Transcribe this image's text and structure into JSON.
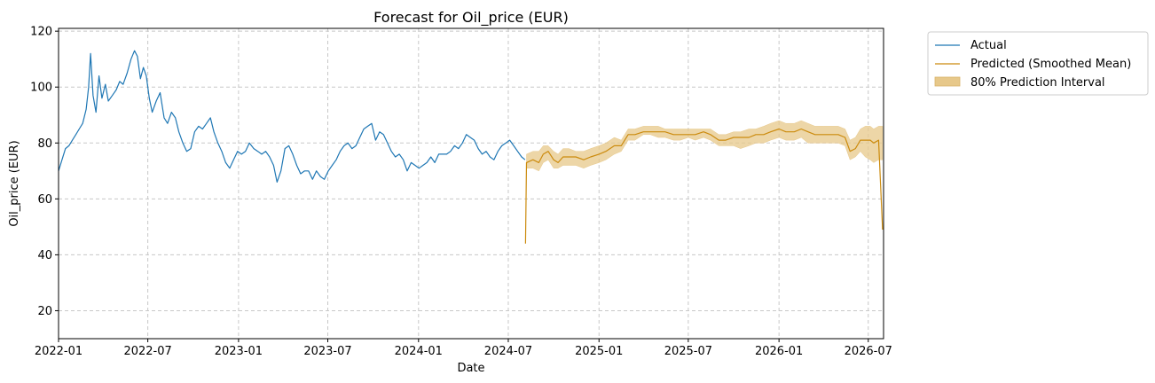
{
  "chart_data": {
    "type": "line",
    "title": "Forecast for Oil_price (EUR)",
    "xlabel": "Date",
    "ylabel": "Oil_price (EUR)",
    "xlim": [
      "2022-01-01",
      "2026-08-01"
    ],
    "ylim": [
      10,
      121
    ],
    "x_ticks": [
      "2022-01",
      "2022-07",
      "2023-01",
      "2023-07",
      "2024-01",
      "2024-07",
      "2025-01",
      "2025-07",
      "2026-01",
      "2026-07"
    ],
    "y_ticks": [
      20,
      40,
      60,
      80,
      100,
      120
    ],
    "grid": true,
    "legend_placement": "outside-top-right",
    "colors": {
      "actual": "#1f77b4",
      "predicted": "#cc8b0e",
      "interval_fill": "#e7c88a"
    },
    "legend": {
      "actual": "Actual",
      "predicted": "Predicted (Smoothed Mean)",
      "interval": "80% Prediction Interval"
    },
    "series": [
      {
        "name": "Actual",
        "points": [
          [
            "2022-01-01",
            70
          ],
          [
            "2022-01-08",
            74
          ],
          [
            "2022-01-15",
            78
          ],
          [
            "2022-01-22",
            79
          ],
          [
            "2022-01-29",
            81
          ],
          [
            "2022-02-05",
            83
          ],
          [
            "2022-02-12",
            85
          ],
          [
            "2022-02-19",
            87
          ],
          [
            "2022-02-26",
            92
          ],
          [
            "2022-03-03",
            100
          ],
          [
            "2022-03-07",
            112
          ],
          [
            "2022-03-12",
            97
          ],
          [
            "2022-03-18",
            91
          ],
          [
            "2022-03-24",
            104
          ],
          [
            "2022-03-30",
            96
          ],
          [
            "2022-04-06",
            101
          ],
          [
            "2022-04-12",
            95
          ],
          [
            "2022-04-20",
            97
          ],
          [
            "2022-04-28",
            99
          ],
          [
            "2022-05-05",
            102
          ],
          [
            "2022-05-12",
            101
          ],
          [
            "2022-05-20",
            105
          ],
          [
            "2022-05-28",
            110
          ],
          [
            "2022-06-04",
            113
          ],
          [
            "2022-06-10",
            111
          ],
          [
            "2022-06-16",
            103
          ],
          [
            "2022-06-22",
            107
          ],
          [
            "2022-06-28",
            104
          ],
          [
            "2022-07-04",
            96
          ],
          [
            "2022-07-10",
            91
          ],
          [
            "2022-07-18",
            95
          ],
          [
            "2022-07-26",
            98
          ],
          [
            "2022-08-03",
            89
          ],
          [
            "2022-08-10",
            87
          ],
          [
            "2022-08-18",
            91
          ],
          [
            "2022-08-26",
            89
          ],
          [
            "2022-09-02",
            84
          ],
          [
            "2022-09-10",
            80
          ],
          [
            "2022-09-18",
            77
          ],
          [
            "2022-09-26",
            78
          ],
          [
            "2022-10-04",
            84
          ],
          [
            "2022-10-12",
            86
          ],
          [
            "2022-10-20",
            85
          ],
          [
            "2022-10-28",
            87
          ],
          [
            "2022-11-05",
            89
          ],
          [
            "2022-11-12",
            84
          ],
          [
            "2022-11-20",
            80
          ],
          [
            "2022-11-28",
            77
          ],
          [
            "2022-12-06",
            73
          ],
          [
            "2022-12-14",
            71
          ],
          [
            "2022-12-22",
            74
          ],
          [
            "2022-12-30",
            77
          ],
          [
            "2023-01-07",
            76
          ],
          [
            "2023-01-15",
            77
          ],
          [
            "2023-01-23",
            80
          ],
          [
            "2023-02-01",
            78
          ],
          [
            "2023-02-09",
            77
          ],
          [
            "2023-02-17",
            76
          ],
          [
            "2023-02-25",
            77
          ],
          [
            "2023-03-05",
            75
          ],
          [
            "2023-03-13",
            72
          ],
          [
            "2023-03-20",
            66
          ],
          [
            "2023-03-28",
            70
          ],
          [
            "2023-04-05",
            78
          ],
          [
            "2023-04-13",
            79
          ],
          [
            "2023-04-21",
            76
          ],
          [
            "2023-04-29",
            72
          ],
          [
            "2023-05-07",
            69
          ],
          [
            "2023-05-15",
            70
          ],
          [
            "2023-05-23",
            70
          ],
          [
            "2023-05-31",
            67
          ],
          [
            "2023-06-08",
            70
          ],
          [
            "2023-06-16",
            68
          ],
          [
            "2023-06-24",
            67
          ],
          [
            "2023-07-02",
            70
          ],
          [
            "2023-07-10",
            72
          ],
          [
            "2023-07-18",
            74
          ],
          [
            "2023-07-26",
            77
          ],
          [
            "2023-08-03",
            79
          ],
          [
            "2023-08-11",
            80
          ],
          [
            "2023-08-19",
            78
          ],
          [
            "2023-08-27",
            79
          ],
          [
            "2023-09-04",
            82
          ],
          [
            "2023-09-12",
            85
          ],
          [
            "2023-09-20",
            86
          ],
          [
            "2023-09-28",
            87
          ],
          [
            "2023-10-06",
            81
          ],
          [
            "2023-10-14",
            84
          ],
          [
            "2023-10-22",
            83
          ],
          [
            "2023-10-30",
            80
          ],
          [
            "2023-11-07",
            77
          ],
          [
            "2023-11-15",
            75
          ],
          [
            "2023-11-23",
            76
          ],
          [
            "2023-12-01",
            74
          ],
          [
            "2023-12-09",
            70
          ],
          [
            "2023-12-17",
            73
          ],
          [
            "2023-12-25",
            72
          ],
          [
            "2024-01-02",
            71
          ],
          [
            "2024-01-10",
            72
          ],
          [
            "2024-01-18",
            73
          ],
          [
            "2024-01-26",
            75
          ],
          [
            "2024-02-03",
            73
          ],
          [
            "2024-02-11",
            76
          ],
          [
            "2024-02-19",
            76
          ],
          [
            "2024-02-27",
            76
          ],
          [
            "2024-03-06",
            77
          ],
          [
            "2024-03-14",
            79
          ],
          [
            "2024-03-22",
            78
          ],
          [
            "2024-03-30",
            80
          ],
          [
            "2024-04-07",
            83
          ],
          [
            "2024-04-15",
            82
          ],
          [
            "2024-04-23",
            81
          ],
          [
            "2024-05-01",
            78
          ],
          [
            "2024-05-09",
            76
          ],
          [
            "2024-05-17",
            77
          ],
          [
            "2024-05-25",
            75
          ],
          [
            "2024-06-02",
            74
          ],
          [
            "2024-06-10",
            77
          ],
          [
            "2024-06-18",
            79
          ],
          [
            "2024-06-26",
            80
          ],
          [
            "2024-07-04",
            81
          ],
          [
            "2024-07-12",
            79
          ],
          [
            "2024-07-20",
            77
          ],
          [
            "2024-07-28",
            75
          ],
          [
            "2024-08-04",
            74
          ]
        ]
      },
      {
        "name": "Predicted (Smoothed Mean)",
        "points": [
          [
            "2024-08-05",
            44
          ],
          [
            "2024-08-07",
            73
          ],
          [
            "2024-08-20",
            74
          ],
          [
            "2024-09-01",
            73
          ],
          [
            "2024-09-10",
            76
          ],
          [
            "2024-09-20",
            77
          ],
          [
            "2024-10-01",
            74
          ],
          [
            "2024-10-10",
            73
          ],
          [
            "2024-10-20",
            75
          ],
          [
            "2024-11-01",
            75
          ],
          [
            "2024-11-15",
            75
          ],
          [
            "2024-12-01",
            74
          ],
          [
            "2024-12-15",
            75
          ],
          [
            "2025-01-01",
            76
          ],
          [
            "2025-01-15",
            77
          ],
          [
            "2025-02-01",
            79
          ],
          [
            "2025-02-15",
            79
          ],
          [
            "2025-03-01",
            83
          ],
          [
            "2025-03-15",
            83
          ],
          [
            "2025-04-01",
            84
          ],
          [
            "2025-04-15",
            84
          ],
          [
            "2025-05-01",
            84
          ],
          [
            "2025-05-15",
            84
          ],
          [
            "2025-06-01",
            83
          ],
          [
            "2025-06-15",
            83
          ],
          [
            "2025-07-01",
            83
          ],
          [
            "2025-07-15",
            83
          ],
          [
            "2025-08-01",
            84
          ],
          [
            "2025-08-15",
            83
          ],
          [
            "2025-09-01",
            81
          ],
          [
            "2025-09-15",
            81
          ],
          [
            "2025-10-01",
            82
          ],
          [
            "2025-10-15",
            82
          ],
          [
            "2025-11-01",
            82
          ],
          [
            "2025-11-15",
            83
          ],
          [
            "2025-12-01",
            83
          ],
          [
            "2025-12-15",
            84
          ],
          [
            "2026-01-01",
            85
          ],
          [
            "2026-01-15",
            84
          ],
          [
            "2026-02-01",
            84
          ],
          [
            "2026-02-15",
            85
          ],
          [
            "2026-03-01",
            84
          ],
          [
            "2026-03-15",
            83
          ],
          [
            "2026-04-01",
            83
          ],
          [
            "2026-04-15",
            83
          ],
          [
            "2026-05-01",
            83
          ],
          [
            "2026-05-15",
            82
          ],
          [
            "2026-05-25",
            77
          ],
          [
            "2026-06-05",
            78
          ],
          [
            "2026-06-15",
            81
          ],
          [
            "2026-06-25",
            81
          ],
          [
            "2026-07-05",
            81
          ],
          [
            "2026-07-12",
            80
          ],
          [
            "2026-07-22",
            81
          ],
          [
            "2026-07-30",
            49
          ]
        ]
      }
    ],
    "interval": {
      "name": "80% Prediction Interval",
      "points": [
        [
          "2024-08-07",
          71,
          76
        ],
        [
          "2024-08-20",
          71,
          77
        ],
        [
          "2024-09-01",
          70,
          77
        ],
        [
          "2024-09-10",
          73,
          79
        ],
        [
          "2024-09-20",
          74,
          79
        ],
        [
          "2024-10-01",
          71,
          77
        ],
        [
          "2024-10-10",
          71,
          76
        ],
        [
          "2024-10-20",
          72,
          78
        ],
        [
          "2024-11-01",
          72,
          78
        ],
        [
          "2024-11-15",
          72,
          77
        ],
        [
          "2024-12-01",
          71,
          77
        ],
        [
          "2024-12-15",
          72,
          78
        ],
        [
          "2025-01-01",
          73,
          79
        ],
        [
          "2025-01-15",
          74,
          80
        ],
        [
          "2025-02-01",
          76,
          82
        ],
        [
          "2025-02-15",
          77,
          81
        ],
        [
          "2025-03-01",
          81,
          85
        ],
        [
          "2025-03-15",
          81,
          85
        ],
        [
          "2025-04-01",
          83,
          86
        ],
        [
          "2025-04-15",
          83,
          86
        ],
        [
          "2025-05-01",
          82,
          86
        ],
        [
          "2025-05-15",
          82,
          85
        ],
        [
          "2025-06-01",
          81,
          85
        ],
        [
          "2025-06-15",
          81,
          85
        ],
        [
          "2025-07-01",
          82,
          85
        ],
        [
          "2025-07-15",
          81,
          85
        ],
        [
          "2025-08-01",
          82,
          85
        ],
        [
          "2025-08-15",
          81,
          85
        ],
        [
          "2025-09-01",
          79,
          83
        ],
        [
          "2025-09-15",
          79,
          83
        ],
        [
          "2025-10-01",
          79,
          84
        ],
        [
          "2025-10-15",
          78,
          84
        ],
        [
          "2025-11-01",
          79,
          85
        ],
        [
          "2025-11-15",
          80,
          85
        ],
        [
          "2025-12-01",
          80,
          86
        ],
        [
          "2025-12-15",
          81,
          87
        ],
        [
          "2026-01-01",
          82,
          88
        ],
        [
          "2026-01-15",
          81,
          87
        ],
        [
          "2026-02-01",
          81,
          87
        ],
        [
          "2026-02-15",
          82,
          88
        ],
        [
          "2026-03-01",
          80,
          87
        ],
        [
          "2026-03-15",
          80,
          86
        ],
        [
          "2026-04-01",
          80,
          86
        ],
        [
          "2026-04-15",
          80,
          86
        ],
        [
          "2026-05-01",
          80,
          86
        ],
        [
          "2026-05-15",
          79,
          85
        ],
        [
          "2026-05-25",
          74,
          81
        ],
        [
          "2026-06-05",
          75,
          82
        ],
        [
          "2026-06-15",
          77,
          85
        ],
        [
          "2026-06-25",
          75,
          86
        ],
        [
          "2026-07-05",
          74,
          86
        ],
        [
          "2026-07-12",
          73,
          85
        ],
        [
          "2026-07-22",
          74,
          86
        ],
        [
          "2026-07-30",
          74,
          86
        ]
      ]
    }
  }
}
